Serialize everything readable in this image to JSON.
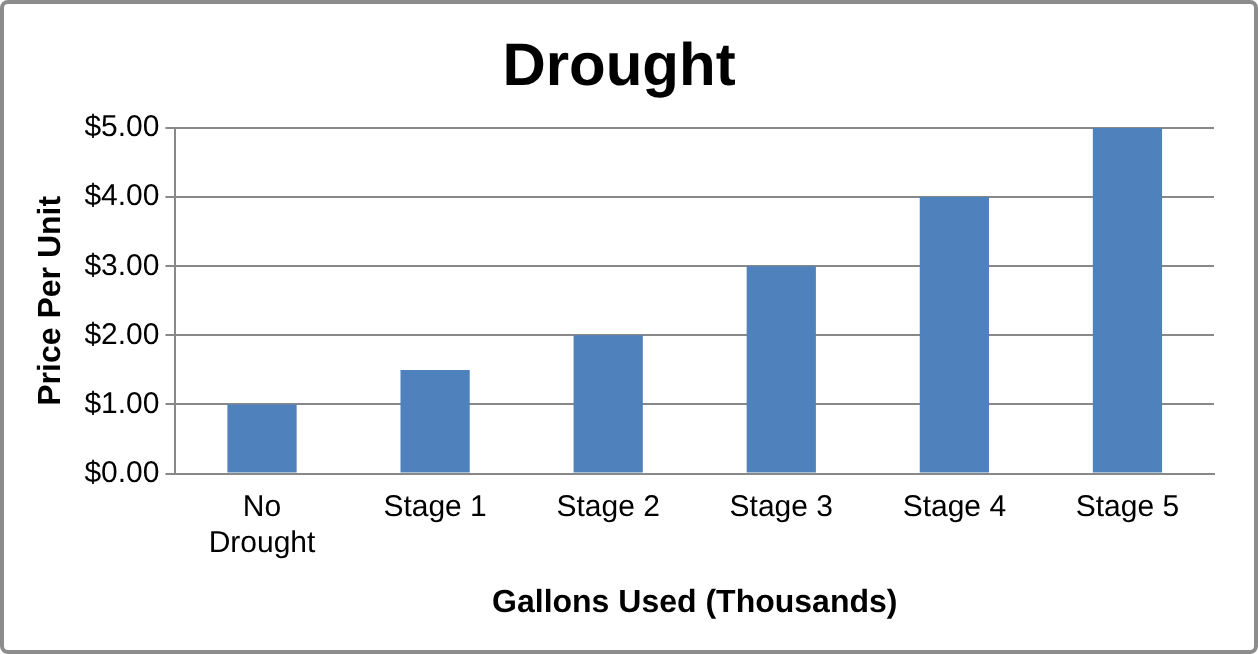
{
  "chart_data": {
    "type": "bar",
    "title": "Drought",
    "xlabel": "Gallons Used (Thousands)",
    "ylabel": "Price Per Unit",
    "categories": [
      "No Drought",
      "Stage 1",
      "Stage 2",
      "Stage 3",
      "Stage 4",
      "Stage 5"
    ],
    "values": [
      1,
      1.5,
      2,
      3,
      4,
      5
    ],
    "color": "#4f81bd",
    "ylim": [
      0,
      5
    ],
    "yticks": [
      {
        "value": 0,
        "label": "$0.00"
      },
      {
        "value": 1,
        "label": "$1.00"
      },
      {
        "value": 2,
        "label": "$2.00"
      },
      {
        "value": 3,
        "label": "$3.00"
      },
      {
        "value": 4,
        "label": "$4.00"
      },
      {
        "value": 5,
        "label": "$5.00"
      }
    ],
    "grid": "y",
    "legend": false
  }
}
